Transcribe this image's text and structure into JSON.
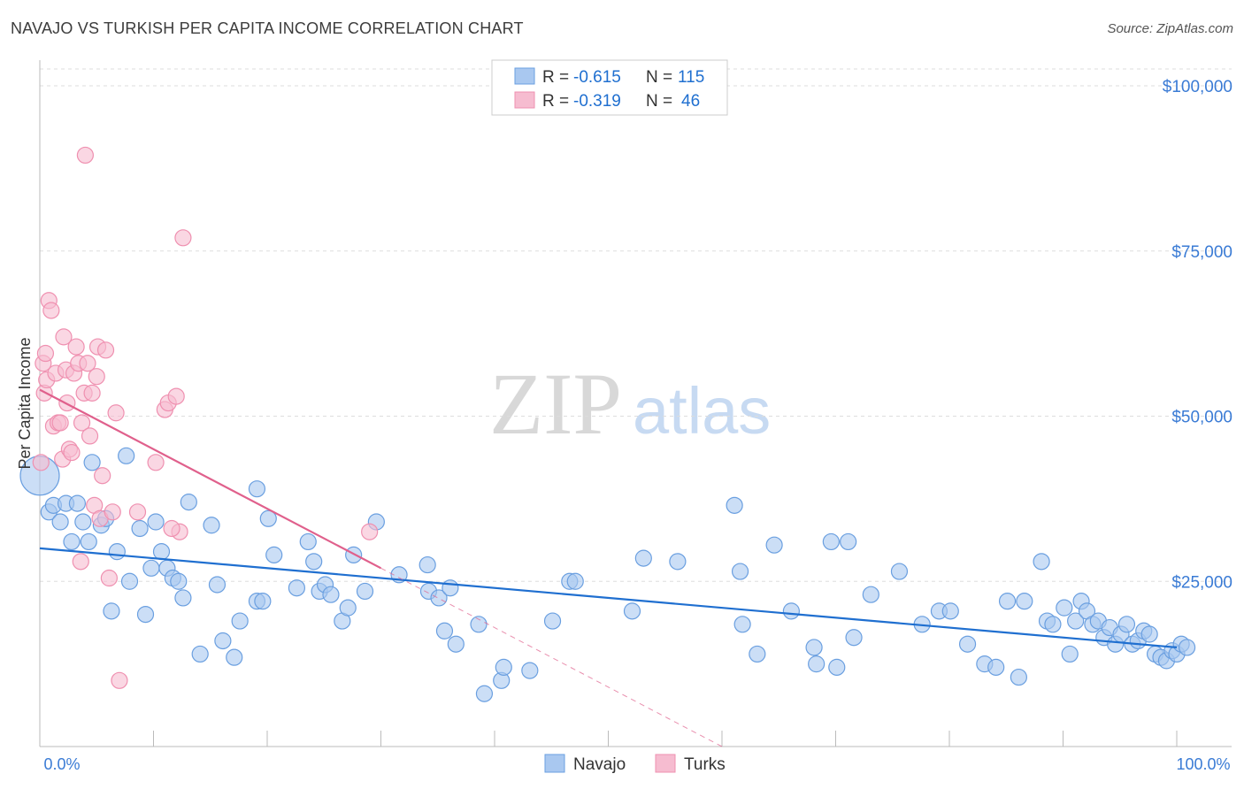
{
  "title": "NAVAJO VS TURKISH PER CAPITA INCOME CORRELATION CHART",
  "source": "Source: ZipAtlas.com",
  "watermark": {
    "zip": "ZIP",
    "atlas": "atlas"
  },
  "colors": {
    "navajo_fill": "#a9c8f0",
    "navajo_stroke": "#6a9fe0",
    "navajo_line": "#1f6fd0",
    "turks_fill": "#f6bcd0",
    "turks_stroke": "#ef90b0",
    "turks_line": "#e0608c",
    "axis_label": "#3a7bd5",
    "grid": "#dddddd"
  },
  "chart_data": {
    "type": "scatter",
    "title": "NAVAJO VS TURKISH PER CAPITA INCOME CORRELATION CHART",
    "xlabel": "",
    "ylabel": "Per Capita Income",
    "xlim": [
      0,
      100
    ],
    "ylim": [
      0,
      105000
    ],
    "x_tick_labels": [
      "0.0%",
      "100.0%"
    ],
    "y_ticks": [
      25000,
      50000,
      75000,
      100000
    ],
    "y_tick_labels": [
      "$25,000",
      "$50,000",
      "$75,000",
      "$100,000"
    ],
    "grid": true,
    "legend_position": "bottom-center",
    "stats_box": [
      {
        "series": "Navajo",
        "r_label": "R = ",
        "r_value": "-0.615",
        "n_label": "N = ",
        "n_value": "115"
      },
      {
        "series": "Turks",
        "r_label": "R = ",
        "r_value": "-0.319",
        "n_label": "N = ",
        "n_value": "46"
      }
    ],
    "series": [
      {
        "name": "Navajo",
        "trend": {
          "x1": 0,
          "y1": 30000,
          "x2": 100,
          "y2": 15000,
          "style": "solid"
        },
        "points": [
          [
            0,
            41000,
            "big"
          ],
          [
            0.8,
            35500
          ],
          [
            1.2,
            36500
          ],
          [
            1.8,
            34000
          ],
          [
            2.3,
            36800
          ],
          [
            2.8,
            31000
          ],
          [
            3.3,
            36800
          ],
          [
            3.8,
            34000
          ],
          [
            4.3,
            31000
          ],
          [
            4.6,
            43000
          ],
          [
            5.4,
            33500
          ],
          [
            5.8,
            34500
          ],
          [
            6.3,
            20500
          ],
          [
            6.8,
            29500
          ],
          [
            7.6,
            44000
          ],
          [
            7.9,
            25000
          ],
          [
            8.8,
            33000
          ],
          [
            9.3,
            20000
          ],
          [
            9.8,
            27000
          ],
          [
            10.2,
            34000
          ],
          [
            10.7,
            29500
          ],
          [
            11.2,
            27000
          ],
          [
            11.7,
            25500
          ],
          [
            12.2,
            25000
          ],
          [
            12.6,
            22500
          ],
          [
            13.1,
            37000
          ],
          [
            14.1,
            14000
          ],
          [
            15.1,
            33500
          ],
          [
            15.6,
            24500
          ],
          [
            16.1,
            16000
          ],
          [
            17.1,
            13500
          ],
          [
            17.6,
            19000
          ],
          [
            19.1,
            39000
          ],
          [
            19.1,
            22000
          ],
          [
            19.6,
            22000
          ],
          [
            20.1,
            34500
          ],
          [
            20.6,
            29000
          ],
          [
            22.6,
            24000
          ],
          [
            23.6,
            31000
          ],
          [
            24.1,
            28000
          ],
          [
            24.6,
            23500
          ],
          [
            25.1,
            24500
          ],
          [
            25.6,
            23000
          ],
          [
            26.6,
            19000
          ],
          [
            27.1,
            21000
          ],
          [
            27.6,
            29000
          ],
          [
            28.6,
            23500
          ],
          [
            29.6,
            34000
          ],
          [
            31.6,
            26000
          ],
          [
            34.1,
            27500
          ],
          [
            34.2,
            23500
          ],
          [
            35.1,
            22500
          ],
          [
            35.6,
            17500
          ],
          [
            36.1,
            24000
          ],
          [
            36.6,
            15500
          ],
          [
            38.6,
            18500
          ],
          [
            39.1,
            8000
          ],
          [
            40.6,
            10000
          ],
          [
            40.8,
            12000
          ],
          [
            43.1,
            11500
          ],
          [
            45.1,
            19000
          ],
          [
            46.6,
            25000
          ],
          [
            47.1,
            25000
          ],
          [
            52.1,
            20500
          ],
          [
            53.1,
            28500
          ],
          [
            56.1,
            28000
          ],
          [
            61.1,
            36500
          ],
          [
            61.6,
            26500
          ],
          [
            61.8,
            18500
          ],
          [
            63.1,
            14000
          ],
          [
            64.6,
            30500
          ],
          [
            66.1,
            20500
          ],
          [
            68.1,
            15000
          ],
          [
            68.3,
            12500
          ],
          [
            69.6,
            31000
          ],
          [
            70.1,
            12000
          ],
          [
            71.1,
            31000
          ],
          [
            71.6,
            16500
          ],
          [
            73.1,
            23000
          ],
          [
            75.6,
            26500
          ],
          [
            77.6,
            18500
          ],
          [
            79.1,
            20500
          ],
          [
            80.1,
            20500
          ],
          [
            81.6,
            15500
          ],
          [
            83.1,
            12500
          ],
          [
            84.1,
            12000
          ],
          [
            85.1,
            22000
          ],
          [
            86.1,
            10500
          ],
          [
            86.6,
            22000
          ],
          [
            88.1,
            28000
          ],
          [
            88.6,
            19000
          ],
          [
            89.1,
            18500
          ],
          [
            90.1,
            21000
          ],
          [
            90.6,
            14000
          ],
          [
            91.1,
            19000
          ],
          [
            91.6,
            22000
          ],
          [
            92.1,
            20500
          ],
          [
            92.6,
            18500
          ],
          [
            93.1,
            19000
          ],
          [
            93.6,
            16500
          ],
          [
            94.1,
            18000
          ],
          [
            94.6,
            15500
          ],
          [
            95.1,
            17000
          ],
          [
            95.6,
            18500
          ],
          [
            96.1,
            15500
          ],
          [
            96.6,
            16000
          ],
          [
            97.1,
            17500
          ],
          [
            97.6,
            17000
          ],
          [
            98.1,
            14000
          ],
          [
            98.6,
            13500
          ],
          [
            99.1,
            13000
          ],
          [
            99.6,
            14500
          ],
          [
            100,
            14000
          ],
          [
            100.4,
            15500
          ],
          [
            100.9,
            15000
          ]
        ]
      },
      {
        "name": "Turks",
        "trend": {
          "x1": 0,
          "y1": 54000,
          "x2": 30,
          "y2": 27000,
          "style": "solid",
          "extension": {
            "x2": 60,
            "y2": 0,
            "style": "dashed"
          }
        },
        "points": [
          [
            0.1,
            43000
          ],
          [
            0.3,
            58000
          ],
          [
            0.4,
            53500
          ],
          [
            0.5,
            59500
          ],
          [
            0.6,
            55500
          ],
          [
            0.8,
            67500
          ],
          [
            1.0,
            66000
          ],
          [
            1.2,
            48500
          ],
          [
            1.4,
            56500
          ],
          [
            1.6,
            49000
          ],
          [
            1.8,
            49000
          ],
          [
            2.0,
            43500
          ],
          [
            2.1,
            62000
          ],
          [
            2.3,
            57000
          ],
          [
            2.4,
            52000
          ],
          [
            2.6,
            45000
          ],
          [
            2.8,
            44500
          ],
          [
            3.0,
            56500
          ],
          [
            3.2,
            60500
          ],
          [
            3.4,
            58000
          ],
          [
            3.6,
            28000
          ],
          [
            3.7,
            49000
          ],
          [
            3.9,
            53500
          ],
          [
            4.0,
            89500
          ],
          [
            4.2,
            58000
          ],
          [
            4.4,
            47000
          ],
          [
            4.6,
            53500
          ],
          [
            4.8,
            36500
          ],
          [
            5.0,
            56000
          ],
          [
            5.1,
            60500
          ],
          [
            5.3,
            34500
          ],
          [
            5.5,
            41000
          ],
          [
            5.8,
            60000
          ],
          [
            6.1,
            25500
          ],
          [
            6.4,
            35500
          ],
          [
            6.7,
            50500
          ],
          [
            7.0,
            10000
          ],
          [
            8.6,
            35500
          ],
          [
            10.2,
            43000
          ],
          [
            11.0,
            51000
          ],
          [
            11.3,
            52000
          ],
          [
            12.0,
            53000
          ],
          [
            12.3,
            32500
          ],
          [
            12.6,
            77000
          ],
          [
            11.6,
            33000
          ],
          [
            29.0,
            32500
          ]
        ]
      }
    ]
  }
}
